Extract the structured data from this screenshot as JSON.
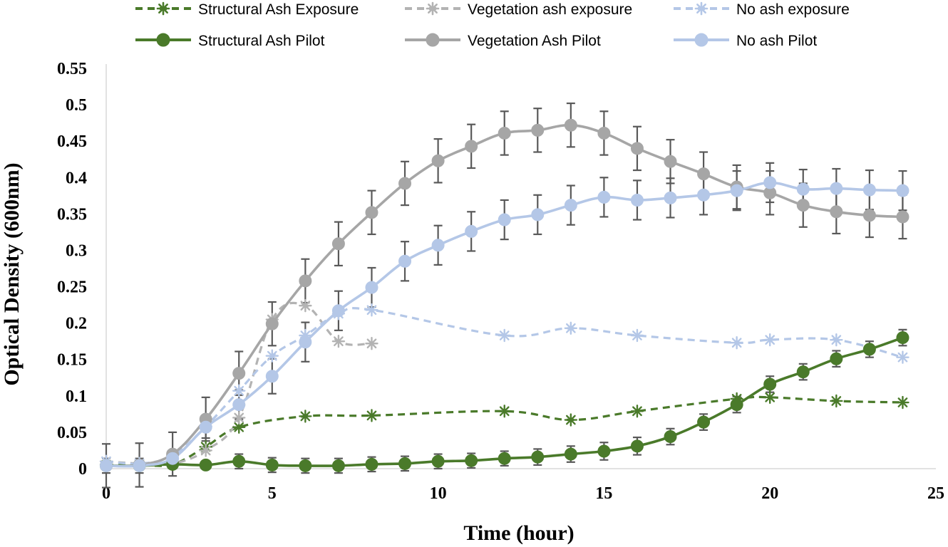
{
  "chart_data": {
    "type": "line",
    "xlabel": "Time (hour)",
    "ylabel": "Optical Density (600nm)",
    "xlim": [
      0,
      25
    ],
    "ylim": [
      0,
      0.55
    ],
    "xticks": [
      "0",
      "5",
      "10",
      "15",
      "20",
      "25"
    ],
    "yticks": [
      "0",
      "0.05",
      "0.1",
      "0.15",
      "0.2",
      "0.25",
      "0.3",
      "0.35",
      "0.4",
      "0.45",
      "0.5",
      "0.55"
    ],
    "grid": false,
    "legend_position": "top",
    "series": [
      {
        "name": "Structural Ash Exposure",
        "color": "#4a7a2a",
        "line": "dashed",
        "marker": "asterisk",
        "x": [
          0,
          1,
          2,
          3,
          4,
          6,
          8,
          12,
          14,
          16,
          19,
          20,
          22,
          24
        ],
        "y": [
          0.005,
          0.005,
          0.006,
          0.03,
          0.057,
          0.072,
          0.073,
          0.079,
          0.067,
          0.079,
          0.096,
          0.098,
          0.093,
          0.091
        ]
      },
      {
        "name": "Vegetation ash exposure",
        "color": "#b3b3b3",
        "line": "dashed",
        "marker": "asterisk",
        "x": [
          0,
          1,
          2,
          3,
          4,
          5,
          6,
          7,
          8
        ],
        "y": [
          0.01,
          0.007,
          0.007,
          0.025,
          0.07,
          0.205,
          0.224,
          0.175,
          0.172
        ]
      },
      {
        "name": "No ash exposure",
        "color": "#b4c7e7",
        "line": "dashed",
        "marker": "asterisk",
        "x": [
          0,
          1,
          2,
          3,
          4,
          5,
          6,
          7,
          8,
          12,
          14,
          16,
          19,
          20,
          22,
          24
        ],
        "y": [
          0.01,
          0.007,
          0.018,
          0.058,
          0.107,
          0.155,
          0.183,
          0.213,
          0.218,
          0.183,
          0.193,
          0.183,
          0.173,
          0.177,
          0.177,
          0.153
        ]
      },
      {
        "name": "Structural Ash Pilot",
        "color": "#4a7a2a",
        "line": "solid",
        "marker": "circle",
        "x": [
          0,
          1,
          2,
          3,
          4,
          5,
          6,
          7,
          8,
          9,
          10,
          11,
          12,
          13,
          14,
          15,
          16,
          17,
          18,
          19,
          20,
          21,
          22,
          23,
          24
        ],
        "y": [
          0.004,
          0.004,
          0.006,
          0.005,
          0.01,
          0.005,
          0.004,
          0.004,
          0.006,
          0.007,
          0.01,
          0.011,
          0.014,
          0.016,
          0.02,
          0.024,
          0.031,
          0.044,
          0.064,
          0.088,
          0.116,
          0.133,
          0.151,
          0.164,
          0.18
        ],
        "error": [
          0,
          0,
          0,
          0,
          0.01,
          0.01,
          0.01,
          0.01,
          0.01,
          0.01,
          0.01,
          0.01,
          0.01,
          0.011,
          0.011,
          0.012,
          0.012,
          0.011,
          0.011,
          0.011,
          0.011,
          0.011,
          0.011,
          0.011,
          0.011
        ]
      },
      {
        "name": "Vegetation Ash Pilot",
        "color": "#a6a6a6",
        "line": "solid",
        "marker": "circle",
        "x": [
          0,
          1,
          2,
          3,
          4,
          5,
          6,
          7,
          8,
          9,
          10,
          11,
          12,
          13,
          14,
          15,
          16,
          17,
          18,
          19,
          20,
          21,
          22,
          23,
          24
        ],
        "y": [
          0.004,
          0.005,
          0.02,
          0.068,
          0.131,
          0.199,
          0.258,
          0.309,
          0.352,
          0.392,
          0.423,
          0.443,
          0.461,
          0.465,
          0.472,
          0.461,
          0.44,
          0.422,
          0.405,
          0.387,
          0.379,
          0.362,
          0.353,
          0.348,
          0.346
        ],
        "error": [
          0.03,
          0.03,
          0.03,
          0.03,
          0.03,
          0.03,
          0.03,
          0.03,
          0.03,
          0.03,
          0.03,
          0.03,
          0.03,
          0.03,
          0.03,
          0.03,
          0.03,
          0.03,
          0.03,
          0.03,
          0.03,
          0.03,
          0.03,
          0.03,
          0.03
        ]
      },
      {
        "name": "No ash Pilot",
        "color": "#b4c7e7",
        "line": "solid",
        "marker": "circle",
        "x": [
          0,
          1,
          2,
          3,
          4,
          5,
          6,
          7,
          8,
          9,
          10,
          11,
          12,
          13,
          14,
          15,
          16,
          17,
          18,
          19,
          20,
          21,
          22,
          23,
          24
        ],
        "y": [
          0.004,
          0.004,
          0.014,
          0.057,
          0.088,
          0.127,
          0.174,
          0.217,
          0.249,
          0.285,
          0.307,
          0.326,
          0.342,
          0.349,
          0.362,
          0.373,
          0.369,
          0.372,
          0.376,
          0.382,
          0.393,
          0.384,
          0.385,
          0.383,
          0.382
        ],
        "error": [
          0.01,
          0.01,
          0.01,
          0.015,
          0.02,
          0.024,
          0.027,
          0.027,
          0.027,
          0.027,
          0.027,
          0.027,
          0.027,
          0.027,
          0.027,
          0.027,
          0.027,
          0.027,
          0.027,
          0.027,
          0.027,
          0.027,
          0.027,
          0.027,
          0.027
        ]
      }
    ]
  }
}
